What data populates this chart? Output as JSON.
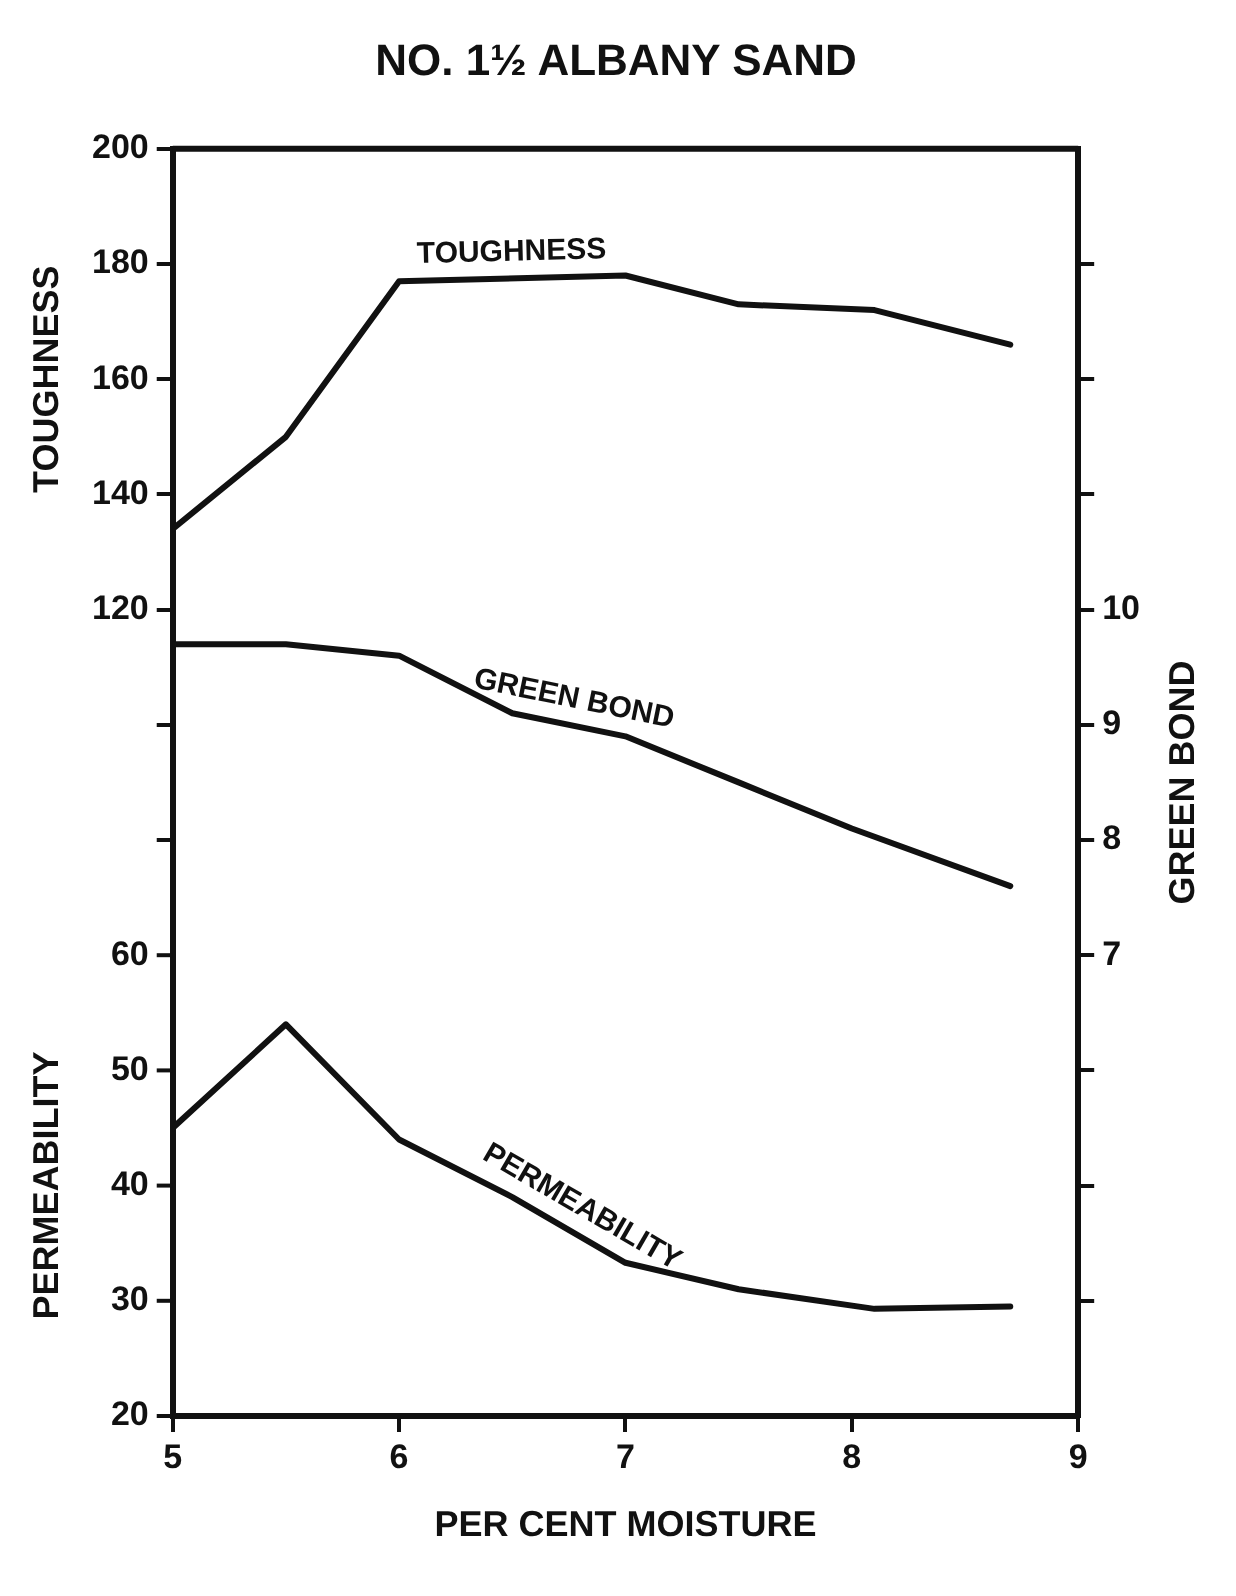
{
  "chart_data": {
    "type": "line",
    "title": "NO. 1½ ALBANY SAND",
    "xlabel": "PER CENT MOISTURE",
    "ylabel": "TOUGHNESS",
    "y2label": "GREEN BOND",
    "y3label": "PERMEABILITY",
    "xlim": [
      5,
      9
    ],
    "xticks": [
      5,
      6,
      7,
      8,
      9
    ],
    "ylim": [
      -20,
      200
    ],
    "yticks": [
      {
        "value": 80,
        "label": null
      },
      {
        "value": 100,
        "label": null
      },
      120,
      140,
      160,
      180,
      200
    ],
    "y2lim": [
      3,
      14
    ],
    "y2ticks": [
      {
        "value": 4,
        "label": null
      },
      {
        "value": 5,
        "label": null
      },
      {
        "value": 6,
        "label": null
      },
      7,
      8,
      9,
      10,
      {
        "value": 11,
        "label": null
      },
      {
        "value": 12,
        "label": null
      },
      {
        "value": 13,
        "label": null
      }
    ],
    "y3lim": [
      20,
      130
    ],
    "y3ticks": [
      20,
      30,
      40,
      50,
      60
    ],
    "grid": false,
    "legend": false,
    "marker": "none",
    "line_style": "solid",
    "series": [
      {
        "name": "TOUGHNESS",
        "color": "#111111",
        "axis": "y",
        "x": [
          5,
          5.5,
          6,
          7,
          7.5,
          8.1,
          8.7
        ],
        "values": [
          134,
          150,
          177,
          178,
          173,
          172,
          166
        ]
      },
      {
        "name": "GREEN BOND",
        "color": "#111111",
        "axis": "y2",
        "x": [
          5,
          5.5,
          6,
          6.5,
          7,
          7.5,
          8,
          8.7
        ],
        "values": [
          9.7,
          9.7,
          9.6,
          9.1,
          8.9,
          8.5,
          8.1,
          7.6
        ]
      },
      {
        "name": "PERMEABILITY",
        "color": "#111111",
        "axis": "y3",
        "x": [
          5,
          5.5,
          6,
          6.5,
          7,
          7.5,
          8.1,
          8.7
        ],
        "values": [
          45,
          54,
          44,
          39,
          33.3,
          31,
          29.3,
          29.5
        ]
      }
    ]
  }
}
